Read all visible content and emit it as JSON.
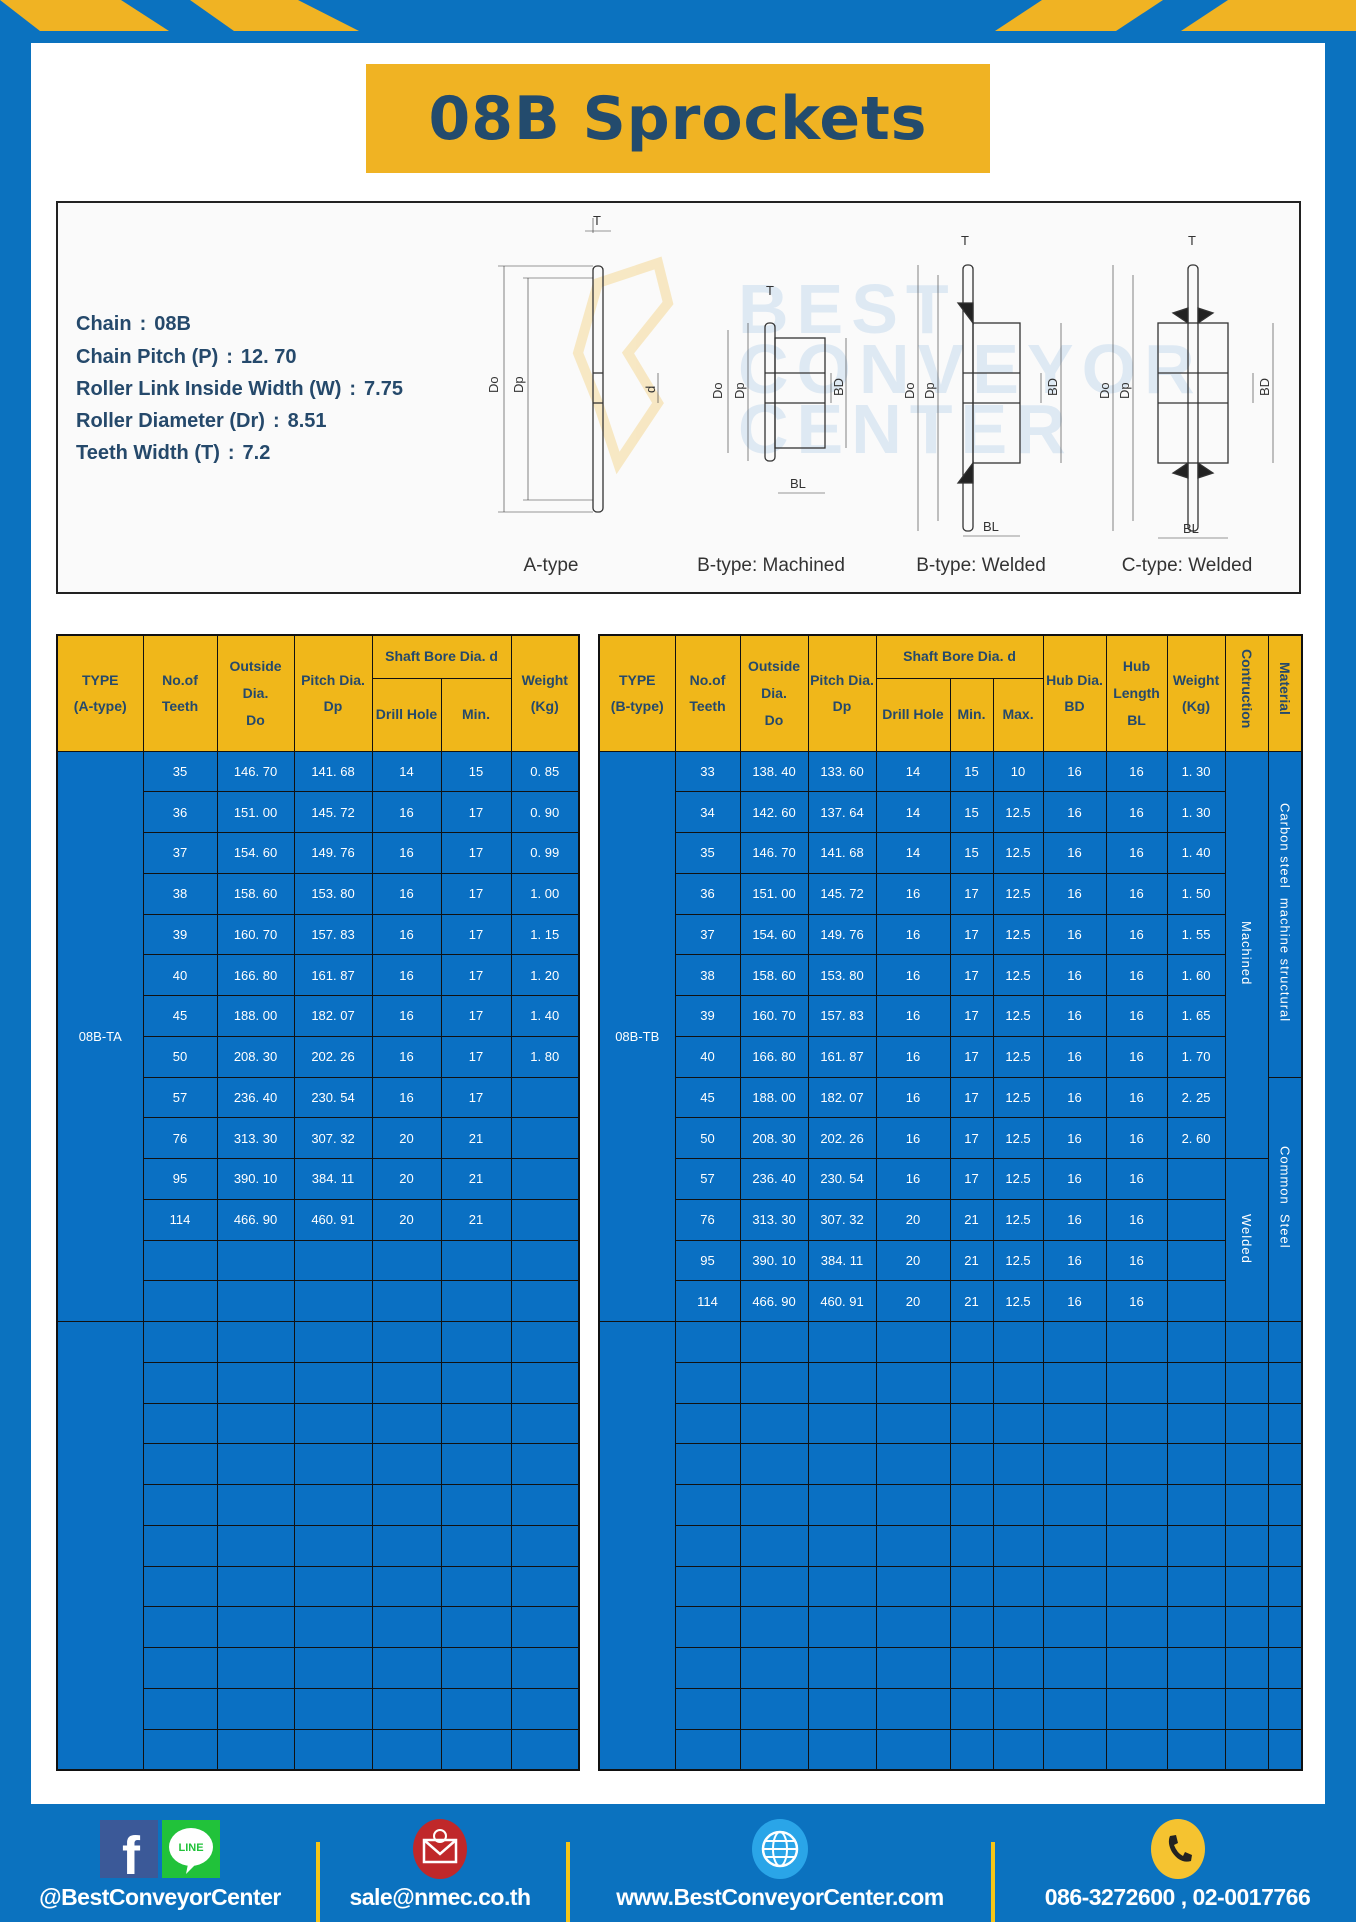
{
  "title": "08B Sprockets",
  "colors": {
    "brand_blue": "#0b72bf",
    "accent_yellow": "#f0b323",
    "title_text": "#234b6d",
    "table_blue": "#0a70c3"
  },
  "specs": [
    {
      "label": "Chain",
      "value": "08B"
    },
    {
      "label": "Chain Pitch (P)",
      "value": "12. 70"
    },
    {
      "label": "Roller Link Inside Width (W)",
      "value": "7.75"
    },
    {
      "label": "Roller Diameter (Dr)",
      "value": "8.51"
    },
    {
      "label": "Teeth Width (T)",
      "value": "7.2"
    }
  ],
  "diagram": {
    "types": [
      "A-type",
      "B-type: Machined",
      "B-type: Welded",
      "C-type: Welded"
    ],
    "dims": {
      "T": "T",
      "Do": "Do",
      "Dp": "Dp",
      "d": "d",
      "BD": "BD",
      "BL": "BL"
    },
    "watermark": "BEST CONVEYOR CENTER"
  },
  "tableA": {
    "headers": {
      "type": [
        "TYPE",
        "(A-type)"
      ],
      "teeth": [
        "No.of",
        "Teeth"
      ],
      "outside": [
        "Outside",
        "Dia.",
        "Do"
      ],
      "pitch": [
        "Pitch Dia.",
        "Dp"
      ],
      "bore": "Shaft Bore Dia. d",
      "drill": "Drill Hole",
      "min": "Min.",
      "weight": [
        "Weight",
        "(Kg)"
      ]
    },
    "type_value": "08B-TA",
    "rows": [
      [
        "35",
        "146. 70",
        "141. 68",
        "14",
        "15",
        "0. 85"
      ],
      [
        "36",
        "151. 00",
        "145. 72",
        "16",
        "17",
        "0. 90"
      ],
      [
        "37",
        "154. 60",
        "149. 76",
        "16",
        "17",
        "0. 99"
      ],
      [
        "38",
        "158. 60",
        "153. 80",
        "16",
        "17",
        "1. 00"
      ],
      [
        "39",
        "160. 70",
        "157. 83",
        "16",
        "17",
        "1. 15"
      ],
      [
        "40",
        "166. 80",
        "161. 87",
        "16",
        "17",
        "1. 20"
      ],
      [
        "45",
        "188. 00",
        "182. 07",
        "16",
        "17",
        "1. 40"
      ],
      [
        "50",
        "208. 30",
        "202. 26",
        "16",
        "17",
        "1. 80"
      ],
      [
        "57",
        "236. 40",
        "230. 54",
        "16",
        "17",
        ""
      ],
      [
        "76",
        "313. 30",
        "307. 32",
        "20",
        "21",
        ""
      ],
      [
        "95",
        "390. 10",
        "384. 11",
        "20",
        "21",
        ""
      ],
      [
        "114",
        "466. 90",
        "460. 91",
        "20",
        "21",
        ""
      ],
      [
        "",
        "",
        "",
        "",
        "",
        ""
      ],
      [
        "",
        "",
        "",
        "",
        "",
        ""
      ]
    ],
    "empty_rows": 11
  },
  "tableB": {
    "headers": {
      "type": [
        "TYPE",
        "(B-type)"
      ],
      "teeth": [
        "No.of",
        "Teeth"
      ],
      "outside": [
        "Outside",
        "Dia.",
        "Do"
      ],
      "pitch": [
        "Pitch Dia.",
        "Dp"
      ],
      "bore": "Shaft Bore Dia. d",
      "drill": "Drill Hole",
      "min": "Min.",
      "max": "Max.",
      "hub_dia": [
        "Hub Dia.",
        "BD"
      ],
      "hub_len": [
        "Hub",
        "Length",
        "BL"
      ],
      "weight": [
        "Weight",
        "(Kg)"
      ],
      "construction": "Contruction",
      "material": "Material"
    },
    "type_value": "08B-TB",
    "rows": [
      [
        "33",
        "138. 40",
        "133. 60",
        "14",
        "15",
        "10",
        "16",
        "16",
        "1. 30"
      ],
      [
        "34",
        "142. 60",
        "137. 64",
        "14",
        "15",
        "12.5",
        "16",
        "16",
        "1. 30"
      ],
      [
        "35",
        "146. 70",
        "141. 68",
        "14",
        "15",
        "12.5",
        "16",
        "16",
        "1. 40"
      ],
      [
        "36",
        "151. 00",
        "145. 72",
        "16",
        "17",
        "12.5",
        "16",
        "16",
        "1. 50"
      ],
      [
        "37",
        "154. 60",
        "149. 76",
        "16",
        "17",
        "12.5",
        "16",
        "16",
        "1. 55"
      ],
      [
        "38",
        "158. 60",
        "153. 80",
        "16",
        "17",
        "12.5",
        "16",
        "16",
        "1. 60"
      ],
      [
        "39",
        "160. 70",
        "157. 83",
        "16",
        "17",
        "12.5",
        "16",
        "16",
        "1. 65"
      ],
      [
        "40",
        "166. 80",
        "161. 87",
        "16",
        "17",
        "12.5",
        "16",
        "16",
        "1. 70"
      ],
      [
        "45",
        "188. 00",
        "182. 07",
        "16",
        "17",
        "12.5",
        "16",
        "16",
        "2. 25"
      ],
      [
        "50",
        "208. 30",
        "202. 26",
        "16",
        "17",
        "12.5",
        "16",
        "16",
        "2. 60"
      ],
      [
        "57",
        "236. 40",
        "230. 54",
        "16",
        "17",
        "12.5",
        "16",
        "16",
        ""
      ],
      [
        "76",
        "313. 30",
        "307. 32",
        "20",
        "21",
        "12.5",
        "16",
        "16",
        ""
      ],
      [
        "95",
        "390. 10",
        "384. 11",
        "20",
        "21",
        "12.5",
        "16",
        "16",
        ""
      ],
      [
        "114",
        "466. 90",
        "460. 91",
        "20",
        "21",
        "12.5",
        "16",
        "16",
        ""
      ]
    ],
    "construction_groups": [
      {
        "label": "Machined",
        "rows": 10
      },
      {
        "label": "Welded",
        "rows": 4
      }
    ],
    "material_groups": [
      {
        "label": "Carbon steel  machine structural",
        "rows": 8
      },
      {
        "label": "Common  Steel",
        "rows": 6
      }
    ],
    "empty_rows": 11
  },
  "footer": {
    "social": "@BestConveyorCenter",
    "email": "sale@nmec.co.th",
    "website": "www.BestConveyorCenter.com",
    "phone": "086-3272600 , 02-0017766",
    "line_label": "LINE"
  }
}
